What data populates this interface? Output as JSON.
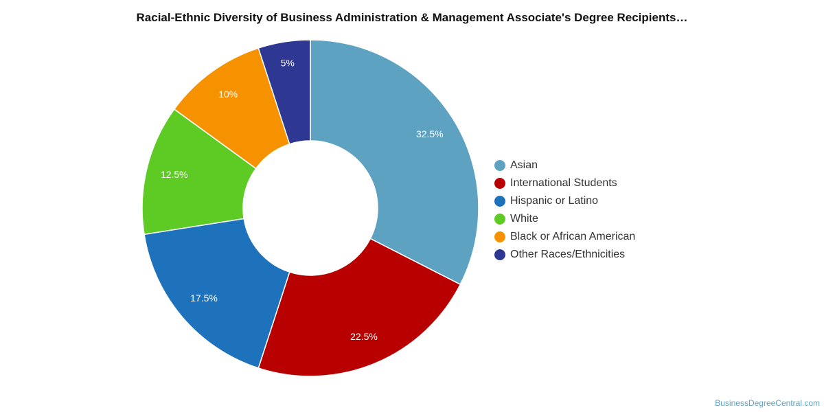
{
  "title": "Racial-Ethnic Diversity of Business Administration & Management Associate's Degree Recipients…",
  "footer": "BusinessDegreeCentral.com",
  "chart_data": {
    "type": "pie",
    "style": "donut",
    "title": "Racial-Ethnic Diversity of Business Administration & Management Associate's Degree Recipients…",
    "legend_position": "right",
    "categories": [
      "Asian",
      "International Students",
      "Hispanic or Latino",
      "White",
      "Black or African American",
      "Other Races/Ethnicities"
    ],
    "values": [
      32.5,
      22.5,
      17.5,
      12.5,
      10,
      5
    ],
    "labels": [
      "32.5%",
      "22.5%",
      "17.5%",
      "12.5%",
      "10%",
      "5%"
    ],
    "colors": [
      "#5ea2c1",
      "#b80000",
      "#1e72bb",
      "#5ecb24",
      "#f69200",
      "#2e3892"
    ]
  }
}
